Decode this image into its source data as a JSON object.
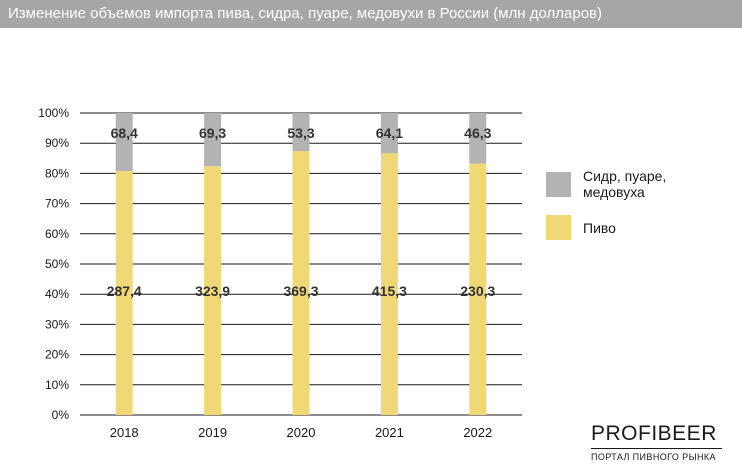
{
  "title": "Изменение объемов импорта пива, сидра, пуаре, медовухи в России (млн долларов)",
  "colors": {
    "beer": "#f1d877",
    "cider": "#b3b3b3",
    "title_bar": "#a6a6a6",
    "axis": "#1a1a1a"
  },
  "legend": {
    "cider_label": "Сидр, пуаре, медовуха",
    "beer_label": "Пиво"
  },
  "brand": {
    "name": "PROFIBEER",
    "subtitle": "ПОРТАЛ ПИВНОГО РЫНКА"
  },
  "chart_data": {
    "type": "bar",
    "stacked_percent": true,
    "categories": [
      "2018",
      "2019",
      "2020",
      "2021",
      "2022"
    ],
    "series": [
      {
        "name": "Пиво",
        "values": [
          287.4,
          323.9,
          369.3,
          415.3,
          230.3
        ],
        "labels": [
          "287,4",
          "323,9",
          "369,3",
          "415,3",
          "230,3"
        ]
      },
      {
        "name": "Сидр, пуаре, медовуха",
        "values": [
          68.4,
          69.3,
          53.3,
          64.1,
          46.3
        ],
        "labels": [
          "68,4",
          "69,3",
          "53,3",
          "64,1",
          "46,3"
        ]
      }
    ],
    "yticks": [
      "0%",
      "10%",
      "20%",
      "30%",
      "40%",
      "50%",
      "60%",
      "70%",
      "80%",
      "90%",
      "100%"
    ],
    "ylim": [
      0,
      100
    ],
    "grid": true,
    "legend_position": "right"
  }
}
